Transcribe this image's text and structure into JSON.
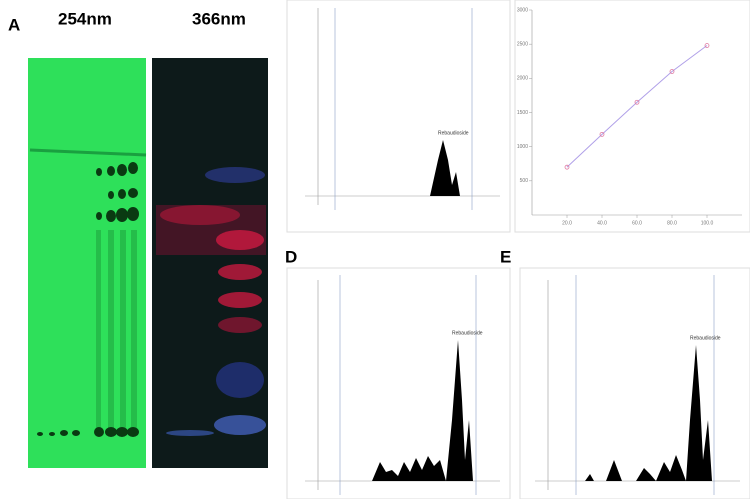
{
  "figure": {
    "panel_labels": [
      "A",
      "D",
      "E"
    ],
    "plates": [
      "254nm",
      "366nm"
    ],
    "peak_labels": [
      "Rebaudioside",
      "Rebaudioside",
      "Rebaudioside"
    ]
  },
  "chart_data": {
    "type": "line",
    "x": [
      20,
      40,
      60,
      80,
      100
    ],
    "values": [
      700,
      1180,
      1650,
      2100,
      2480
    ],
    "color": "#e07aa0",
    "xlim": [
      0,
      120
    ],
    "ylim": [
      0,
      3000
    ],
    "xticks": [
      {
        "value": 20,
        "label": "20.0"
      },
      {
        "value": 40,
        "label": "40.0"
      },
      {
        "value": 60,
        "label": "60.0"
      },
      {
        "value": 80,
        "label": "80.0"
      },
      {
        "value": 100,
        "label": "100.0"
      }
    ],
    "yticks": [
      500,
      1000,
      1500,
      2000,
      2500,
      3000
    ]
  }
}
